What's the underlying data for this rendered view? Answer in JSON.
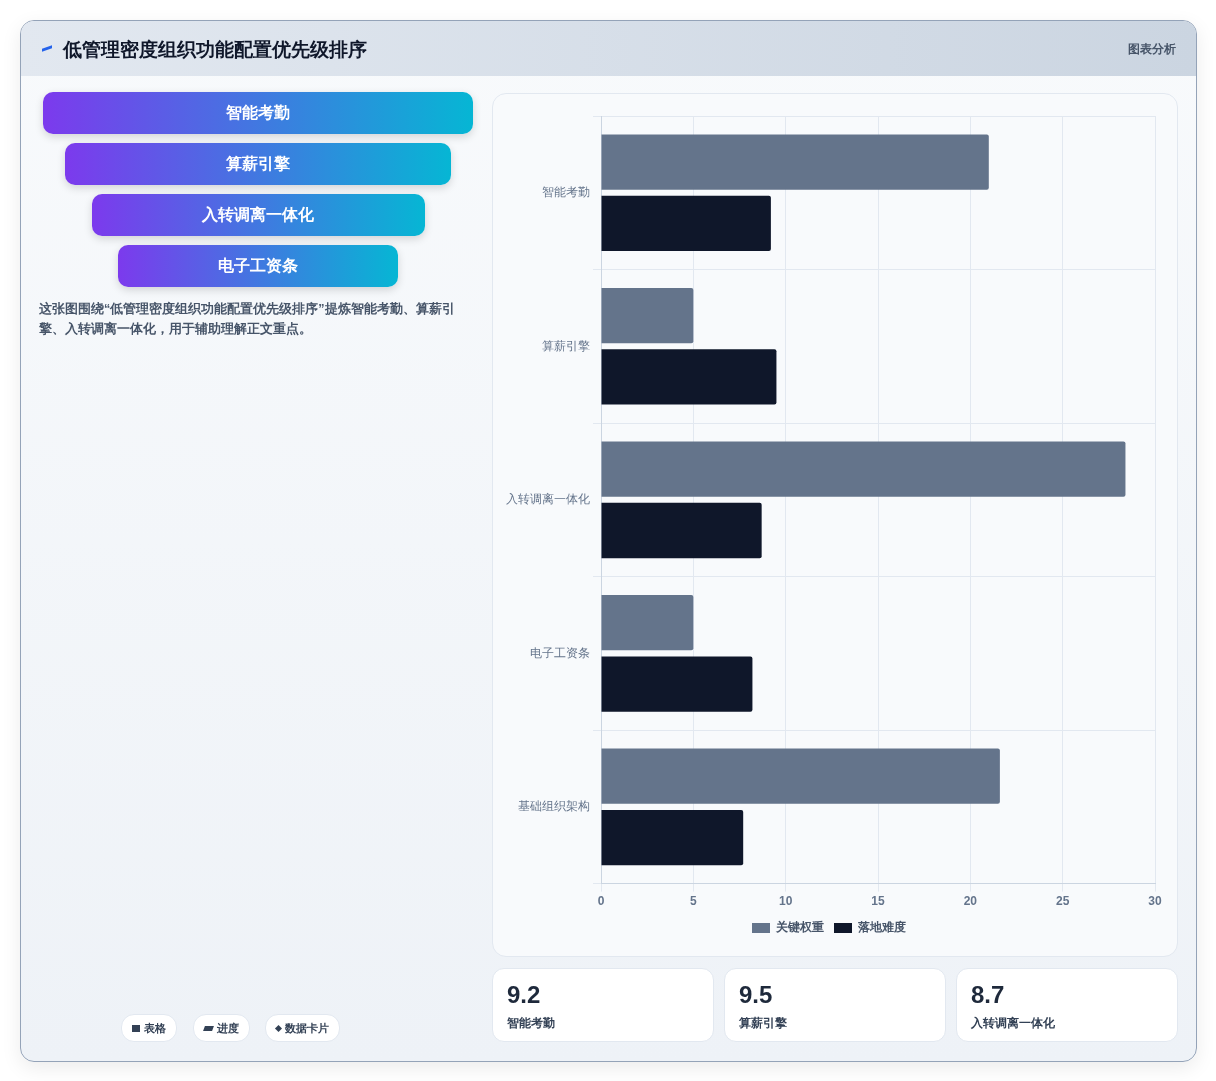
{
  "chart_data": [
    {
      "type": "other",
      "title": "低管理密度组织功能配置优先级排序",
      "subtitle": "图表分析",
      "categories": [
        "智能考勤",
        "算薪引擎",
        "入转调离一体化",
        "电子工资条"
      ],
      "annotations": [
        "这张图围绕“低管理密度组织功能配置优先级排序”提炼智能考勤、算薪引擎、入转调离一体化，用于辅助理解正文重点。",
        "表格",
        "进度",
        "数据卡片"
      ]
    },
    {
      "type": "bar",
      "orientation": "horizontal",
      "categories": [
        "智能考勤",
        "算薪引擎",
        "入转调离一体化",
        "电子工资条",
        "基础组织架构"
      ],
      "series": [
        {
          "name": "关键权重",
          "color": "#64748b",
          "values": [
            21,
            5,
            28.4,
            5,
            21.6
          ]
        },
        {
          "name": "落地难度",
          "color": "#0f172a",
          "values": [
            9.2,
            9.5,
            8.7,
            8.2,
            7.7
          ]
        }
      ],
      "xlim": [
        0,
        30
      ],
      "xticks": [
        0,
        5,
        10,
        15,
        20,
        25,
        30
      ],
      "grid": true,
      "legend": "bottom"
    },
    {
      "type": "other",
      "categories": [
        "智能考勤",
        "算薪引擎",
        "入转调离一体化"
      ],
      "values": [
        9.2,
        9.5,
        8.7
      ],
      "data_labels": true
    }
  ]
}
